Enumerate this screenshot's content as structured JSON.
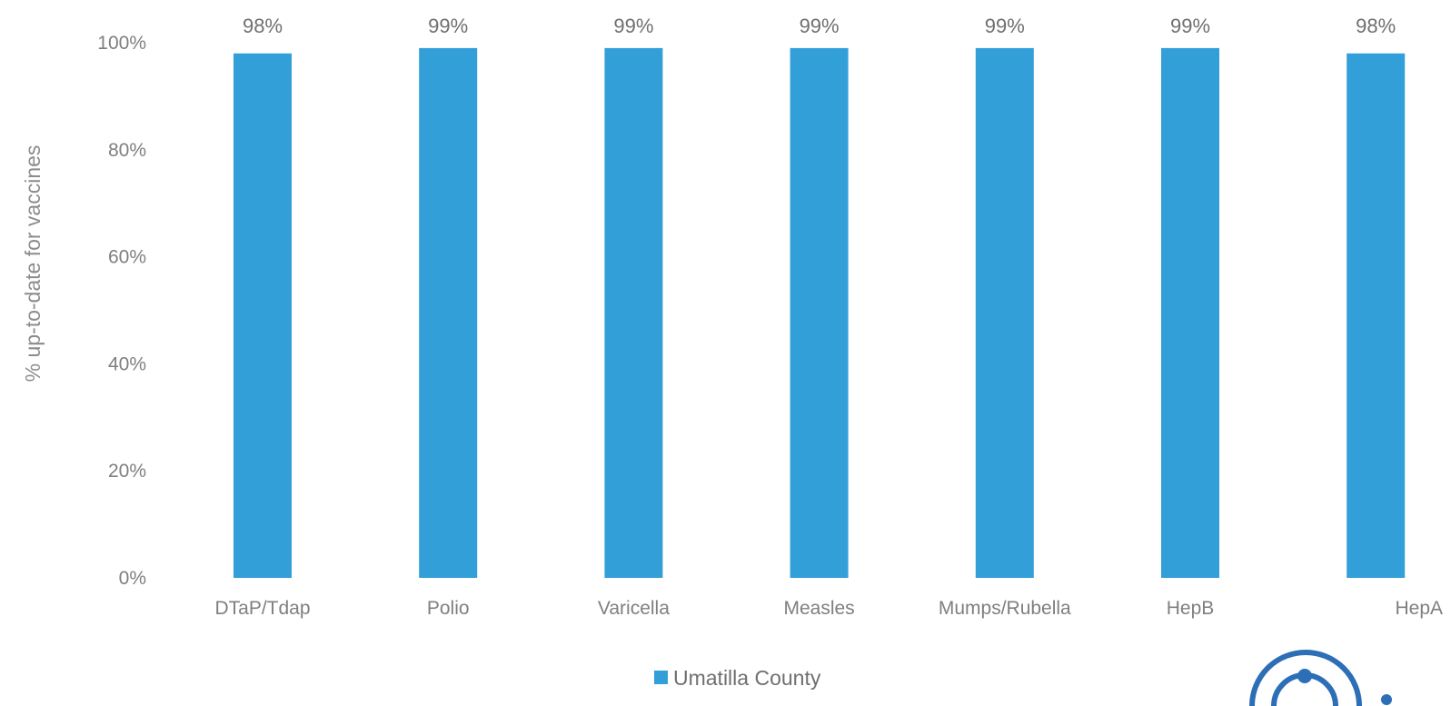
{
  "chart_data": {
    "type": "bar",
    "categories": [
      "DTaP/Tdap",
      "Polio",
      "Varicella",
      "Measles",
      "Mumps/Rubella",
      "HepB",
      "HepA"
    ],
    "series": [
      {
        "name": "Umatilla County",
        "values": [
          98,
          99,
          99,
          99,
          99,
          99,
          98
        ],
        "color": "#339fd9"
      }
    ],
    "data_labels": [
      "98%",
      "99%",
      "99%",
      "99%",
      "99%",
      "99%",
      "98%"
    ],
    "ylabel": "% up-to-date for vaccines",
    "ylim": [
      0,
      100
    ],
    "yticks": [
      0,
      20,
      40,
      60,
      80,
      100
    ],
    "ytick_labels": [
      "0%",
      "20%",
      "40%",
      "60%",
      "80%",
      "100%"
    ],
    "grid": false,
    "legend": {
      "position": "bottom",
      "entries": [
        "Umatilla County"
      ]
    },
    "logo": {
      "name": "organization-logo"
    }
  }
}
